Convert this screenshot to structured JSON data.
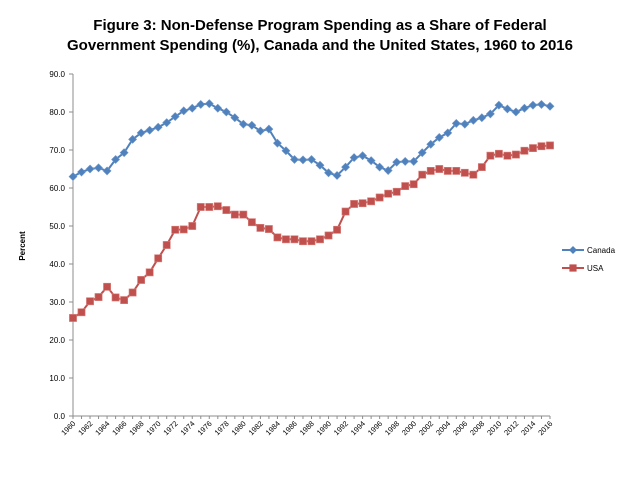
{
  "chart_data": {
    "type": "line",
    "title_line1": "Figure 3: Non-Defense Program Spending as a Share of Federal",
    "title_line2": "Government Spending (%), Canada and the United States, 1960 to 2016",
    "xlabel": "",
    "ylabel": "Percent",
    "ylim": [
      0,
      90
    ],
    "yticks": [
      "0.0",
      "10.0",
      "20.0",
      "30.0",
      "40.0",
      "50.0",
      "60.0",
      "70.0",
      "80.0",
      "90.0"
    ],
    "xticks": [
      "1960",
      "1962",
      "1964",
      "1966",
      "1968",
      "1970",
      "1972",
      "1974",
      "1976",
      "1978",
      "1980",
      "1982",
      "1984",
      "1986",
      "1988",
      "1990",
      "1992",
      "1994",
      "1996",
      "1998",
      "2000",
      "2002",
      "2004",
      "2006",
      "2008",
      "2010",
      "2012",
      "2014",
      "2016"
    ],
    "x_start": 1960,
    "legend_position": "right",
    "grid": false,
    "series": [
      {
        "name": "Canada",
        "color": "#4f81bd",
        "marker": "diamond",
        "values": [
          63.0,
          64.2,
          65.0,
          65.3,
          64.5,
          67.5,
          69.3,
          72.8,
          74.5,
          75.2,
          76.0,
          77.2,
          78.8,
          80.3,
          81.0,
          82.0,
          82.2,
          81.0,
          80.0,
          78.5,
          76.8,
          76.5,
          75.0,
          75.5,
          71.8,
          69.8,
          67.5,
          67.4,
          67.5,
          66.0,
          64.0,
          63.3,
          65.5,
          68.0,
          68.5,
          67.2,
          65.5,
          64.6,
          66.8,
          67.0,
          67.0,
          69.3,
          71.5,
          73.3,
          74.5,
          77.0,
          76.8,
          77.8,
          78.5,
          79.5,
          81.8,
          80.8,
          80.0,
          81.0,
          81.8,
          82.0,
          81.5
        ]
      },
      {
        "name": "USA",
        "color": "#c0504d",
        "marker": "square",
        "values": [
          25.8,
          27.3,
          30.2,
          31.3,
          34.0,
          31.2,
          30.5,
          32.5,
          35.8,
          37.8,
          41.5,
          45.0,
          49.0,
          49.1,
          50.0,
          55.0,
          55.0,
          55.2,
          54.2,
          53.0,
          53.0,
          51.0,
          49.5,
          49.2,
          47.0,
          46.5,
          46.5,
          46.0,
          46.0,
          46.5,
          47.5,
          49.0,
          53.8,
          55.8,
          56.0,
          56.5,
          57.5,
          58.5,
          59.0,
          60.5,
          61.0,
          63.5,
          64.5,
          65.0,
          64.5,
          64.5,
          64.0,
          63.5,
          65.5,
          68.5,
          69.0,
          68.5,
          68.8,
          69.8,
          70.5,
          71.0,
          71.2
        ]
      }
    ]
  }
}
